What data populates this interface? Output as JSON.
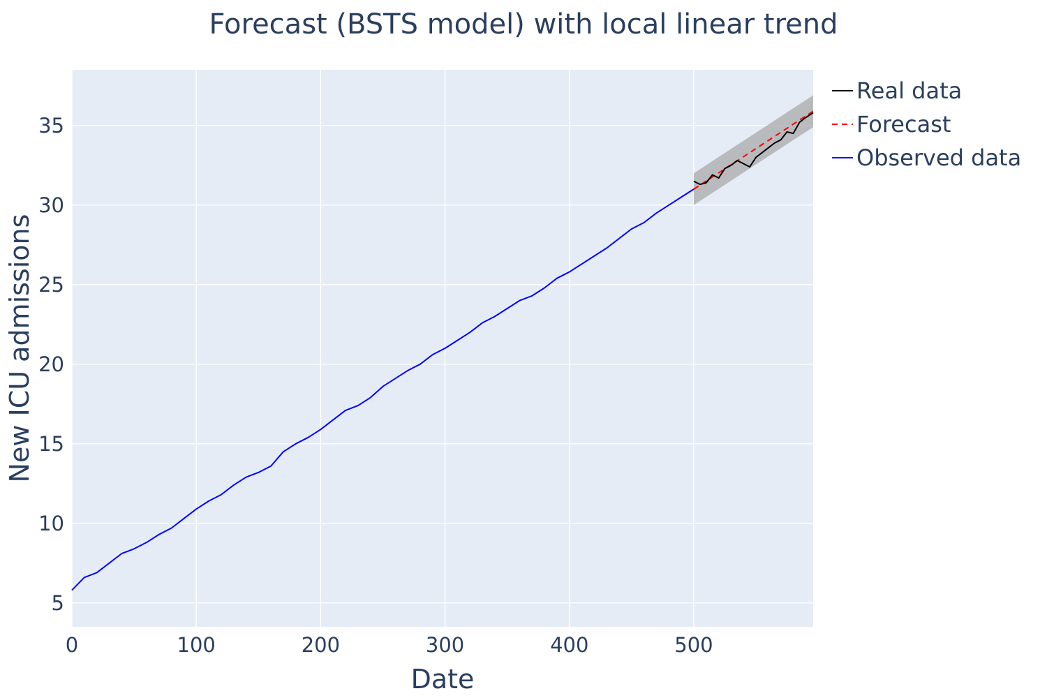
{
  "chart_data": {
    "type": "line",
    "title": "Forecast (BSTS model) with local linear trend",
    "xlabel": "Date",
    "ylabel": "New ICU admissions",
    "xlim": [
      0,
      596
    ],
    "ylim": [
      3.5,
      38.5
    ],
    "grid": true,
    "legend_position": "outside-top-right",
    "x_ticks": [
      0,
      100,
      200,
      300,
      400,
      500
    ],
    "y_ticks": [
      5,
      10,
      15,
      20,
      25,
      30,
      35
    ],
    "x_tick_labels": [
      "0",
      "100",
      "200",
      "300",
      "400",
      "500"
    ],
    "y_tick_labels": [
      "5",
      "10",
      "15",
      "20",
      "25",
      "30",
      "35"
    ],
    "colors": {
      "plot_background": "#e5ecf6",
      "grid": "#ffffff",
      "real": "#000000",
      "forecast": "#ff0000",
      "observed": "#0000ff",
      "interval": "#a9a9a9"
    },
    "legend": [
      "Real data",
      "Forecast",
      "Observed data"
    ],
    "series": [
      {
        "name": "Observed data",
        "style": "solid",
        "x": [
          0,
          10,
          20,
          30,
          40,
          50,
          60,
          70,
          80,
          90,
          100,
          110,
          120,
          130,
          140,
          150,
          160,
          170,
          180,
          190,
          200,
          210,
          220,
          230,
          240,
          250,
          260,
          270,
          280,
          290,
          300,
          310,
          320,
          330,
          340,
          350,
          360,
          370,
          380,
          390,
          400,
          410,
          420,
          430,
          440,
          450,
          460,
          470,
          480,
          490,
          500
        ],
        "y": [
          5.8,
          6.6,
          6.9,
          7.5,
          8.1,
          8.4,
          8.8,
          9.3,
          9.7,
          10.3,
          10.9,
          11.4,
          11.8,
          12.4,
          12.9,
          13.2,
          13.6,
          14.5,
          15.0,
          15.4,
          15.9,
          16.5,
          17.1,
          17.4,
          17.9,
          18.6,
          19.1,
          19.6,
          20.0,
          20.6,
          21.0,
          21.5,
          22.0,
          22.6,
          23.0,
          23.5,
          24.0,
          24.3,
          24.8,
          25.4,
          25.8,
          26.3,
          26.8,
          27.3,
          27.9,
          28.5,
          28.9,
          29.5,
          30.0,
          30.5,
          31.0
        ]
      },
      {
        "name": "Forecast",
        "style": "dashed",
        "x": [
          500,
          596
        ],
        "y": [
          31.0,
          35.9
        ]
      },
      {
        "name": "Real data",
        "style": "solid",
        "x": [
          500,
          505,
          510,
          515,
          520,
          525,
          530,
          535,
          540,
          545,
          550,
          555,
          560,
          565,
          570,
          575,
          580,
          585,
          590,
          596
        ],
        "y": [
          31.5,
          31.3,
          31.4,
          31.9,
          31.7,
          32.3,
          32.5,
          32.8,
          32.6,
          32.4,
          33.0,
          33.3,
          33.6,
          33.9,
          34.1,
          34.6,
          34.5,
          35.2,
          35.5,
          35.8
        ]
      }
    ],
    "interval": {
      "x": [
        500,
        596
      ],
      "lower": [
        30.0,
        34.9
      ],
      "upper": [
        32.0,
        36.9
      ]
    }
  }
}
